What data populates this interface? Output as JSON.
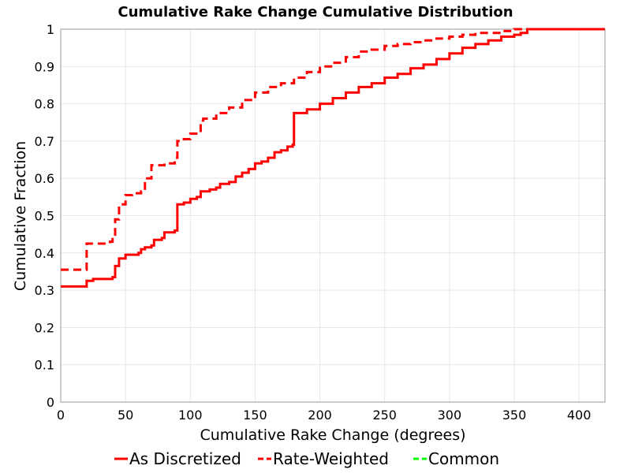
{
  "chart_data": {
    "type": "line",
    "title": "Cumulative Rake Change Cumulative Distribution",
    "xlabel": "Cumulative Rake Change (degrees)",
    "ylabel": "Cumulative Fraction",
    "xlim": [
      0,
      420
    ],
    "ylim": [
      0,
      1
    ],
    "xticks": [
      "0",
      "50",
      "100",
      "150",
      "200",
      "250",
      "300",
      "350",
      "400"
    ],
    "yticks": [
      "0",
      "0.1",
      "0.2",
      "0.3",
      "0.4",
      "0.5",
      "0.6",
      "0.7",
      "0.8",
      "0.9",
      "1"
    ],
    "grid": true,
    "legend_position": "bottom",
    "series": [
      {
        "name": "As Discretized",
        "color": "#ff0000",
        "dash": "solid",
        "x": [
          0,
          20,
          20,
          25,
          38,
          40,
          42,
          45,
          50,
          60,
          62,
          65,
          70,
          72,
          78,
          80,
          88,
          90,
          92,
          95,
          100,
          105,
          108,
          115,
          120,
          123,
          130,
          135,
          140,
          145,
          150,
          155,
          160,
          165,
          170,
          175,
          179,
          180,
          190,
          200,
          210,
          220,
          230,
          240,
          250,
          260,
          270,
          280,
          290,
          300,
          310,
          320,
          330,
          340,
          350,
          355,
          360,
          420
        ],
        "y": [
          0.31,
          0.31,
          0.325,
          0.33,
          0.33,
          0.335,
          0.365,
          0.385,
          0.395,
          0.4,
          0.41,
          0.415,
          0.42,
          0.435,
          0.44,
          0.455,
          0.46,
          0.53,
          0.53,
          0.535,
          0.545,
          0.55,
          0.565,
          0.57,
          0.575,
          0.585,
          0.59,
          0.605,
          0.615,
          0.625,
          0.64,
          0.645,
          0.655,
          0.67,
          0.675,
          0.685,
          0.69,
          0.775,
          0.785,
          0.8,
          0.815,
          0.83,
          0.845,
          0.855,
          0.87,
          0.88,
          0.895,
          0.905,
          0.92,
          0.935,
          0.95,
          0.96,
          0.97,
          0.98,
          0.985,
          0.99,
          1.0,
          1.0
        ]
      },
      {
        "name": "Rate-Weighted",
        "color": "#ff0000",
        "dash": "dashed",
        "x": [
          0,
          19,
          20,
          38,
          40,
          42,
          45,
          50,
          55,
          62,
          65,
          70,
          80,
          88,
          90,
          95,
          100,
          108,
          110,
          120,
          130,
          140,
          150,
          160,
          170,
          180,
          190,
          200,
          210,
          220,
          230,
          240,
          250,
          260,
          270,
          280,
          290,
          300,
          310,
          320,
          330,
          340,
          350,
          360,
          420
        ],
        "y": [
          0.355,
          0.355,
          0.425,
          0.43,
          0.445,
          0.49,
          0.53,
          0.555,
          0.56,
          0.565,
          0.6,
          0.635,
          0.64,
          0.655,
          0.7,
          0.705,
          0.72,
          0.755,
          0.76,
          0.775,
          0.79,
          0.81,
          0.83,
          0.845,
          0.855,
          0.87,
          0.885,
          0.9,
          0.91,
          0.925,
          0.94,
          0.945,
          0.955,
          0.96,
          0.965,
          0.97,
          0.975,
          0.98,
          0.985,
          0.99,
          0.99,
          0.995,
          1.0,
          1.0,
          1.0
        ]
      },
      {
        "name": "Common",
        "color": "#00ff00",
        "dash": "dashed",
        "x": [],
        "y": []
      }
    ]
  }
}
